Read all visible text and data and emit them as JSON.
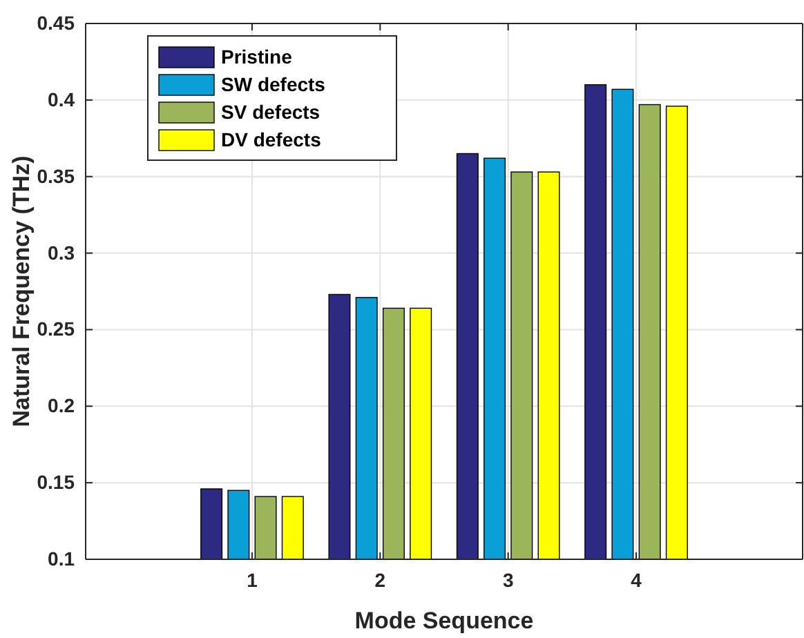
{
  "chart_data": {
    "type": "bar",
    "xlabel": "Mode Sequence",
    "ylabel": "Natural Frequency (THz)",
    "categories": [
      "1",
      "2",
      "3",
      "4"
    ],
    "series": [
      {
        "name": "Pristine",
        "color": "#2e2a84",
        "values": [
          0.146,
          0.273,
          0.365,
          0.41
        ]
      },
      {
        "name": "SW defects",
        "color": "#0b9fd8",
        "values": [
          0.145,
          0.271,
          0.362,
          0.407
        ]
      },
      {
        "name": "SV defects",
        "color": "#9cb45a",
        "values": [
          0.141,
          0.264,
          0.353,
          0.397
        ]
      },
      {
        "name": "DV defects",
        "color": "#ffff00",
        "values": [
          0.141,
          0.264,
          0.353,
          0.396
        ]
      }
    ],
    "ylim": [
      0.1,
      0.45
    ],
    "yticks": [
      0.1,
      0.15,
      0.2,
      0.25,
      0.3,
      0.35,
      0.4,
      0.45
    ],
    "grid": true,
    "legend": "top left"
  }
}
